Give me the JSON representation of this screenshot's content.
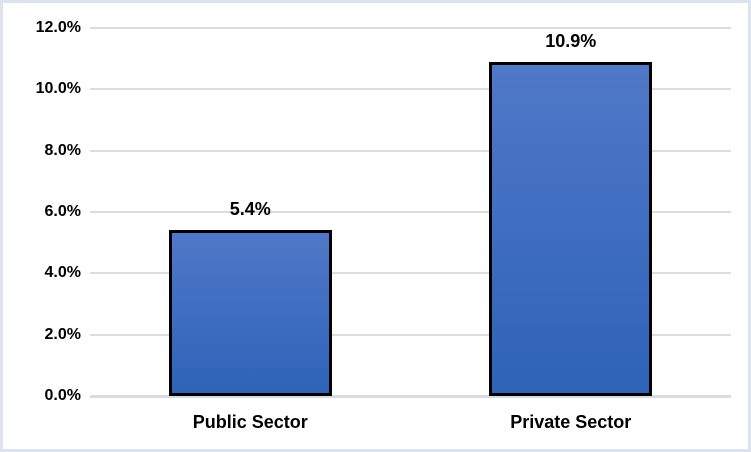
{
  "chart_data": {
    "type": "bar",
    "categories": [
      "Public Sector",
      "Private Sector"
    ],
    "values": [
      5.4,
      10.9
    ],
    "data_labels": [
      "5.4%",
      "10.9%"
    ],
    "title": "",
    "xlabel": "",
    "ylabel": "",
    "ylim": [
      0,
      12
    ],
    "ytick_step": 2,
    "ytick_labels": [
      "0.0%",
      "2.0%",
      "4.0%",
      "6.0%",
      "8.0%",
      "10.0%",
      "12.0%"
    ],
    "grid": "horizontal",
    "legend": "none"
  },
  "style": {
    "bar_gradient_top": "#5078c8",
    "bar_gradient_bottom": "#2e63b8",
    "bar_border_color": "#000000",
    "gridline_color": "#dcdcdc",
    "axis_line_color": "#d8dbe2",
    "text_color": "#000000",
    "chart_border_color": "#dde3ec",
    "background_color": "#ffffff"
  }
}
